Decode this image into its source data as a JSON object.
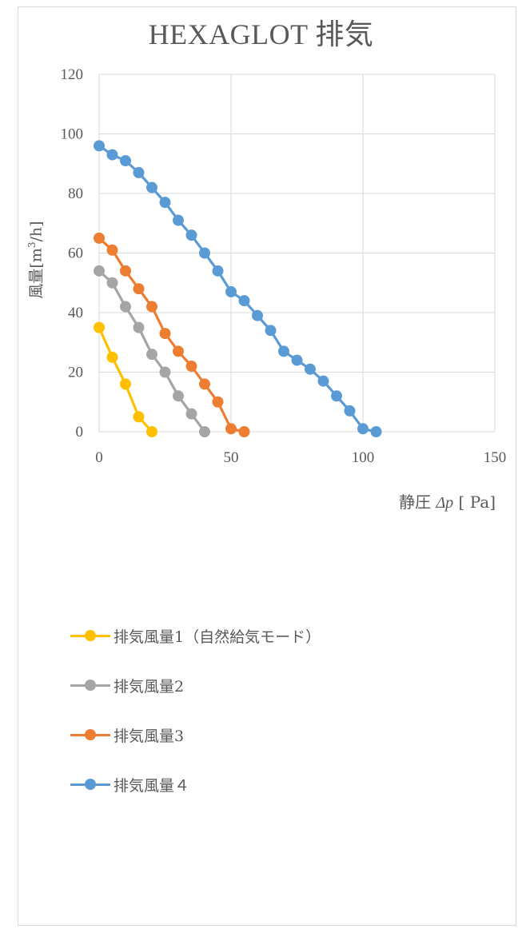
{
  "chart_data": {
    "type": "line",
    "title": "HEXAGLOT 排気",
    "ylabel_main": "風量[m",
    "ylabel_sup": "3",
    "ylabel_tail": "/h]",
    "xlabel_prefix": "静圧 ",
    "xlabel_var": "Δp",
    "xlabel_suffix": " [ Pa]",
    "xlim": [
      0,
      150
    ],
    "ylim": [
      0,
      120
    ],
    "xticks": [
      "0",
      "50",
      "100",
      "150"
    ],
    "yticks": [
      "0",
      "20",
      "40",
      "60",
      "80",
      "100",
      "120"
    ],
    "grid": true,
    "legend_position": "bottom",
    "series": [
      {
        "name": "排気風量1（自然給気モード）",
        "color": "#FFC000",
        "x": [
          0,
          5,
          10,
          15,
          20
        ],
        "y": [
          35,
          25,
          16,
          5,
          0
        ]
      },
      {
        "name": "排気風量2",
        "color": "#A5A5A5",
        "x": [
          0,
          5,
          10,
          15,
          20,
          25,
          30,
          35,
          40
        ],
        "y": [
          54,
          50,
          42,
          35,
          26,
          20,
          12,
          6,
          0
        ]
      },
      {
        "name": "排気風量3",
        "color": "#ED7D31",
        "x": [
          0,
          5,
          10,
          15,
          20,
          25,
          30,
          35,
          40,
          45,
          50,
          55
        ],
        "y": [
          65,
          61,
          54,
          48,
          42,
          33,
          27,
          22,
          16,
          10,
          1,
          0
        ]
      },
      {
        "name": "排気風量４",
        "color": "#5B9BD5",
        "x": [
          0,
          5,
          10,
          15,
          20,
          25,
          30,
          35,
          40,
          45,
          50,
          55,
          60,
          65,
          70,
          75,
          80,
          85,
          90,
          95,
          100,
          105
        ],
        "y": [
          96,
          93,
          91,
          87,
          82,
          77,
          71,
          66,
          60,
          54,
          47,
          44,
          39,
          34,
          27,
          24,
          21,
          17,
          12,
          7,
          1,
          0
        ]
      }
    ]
  }
}
